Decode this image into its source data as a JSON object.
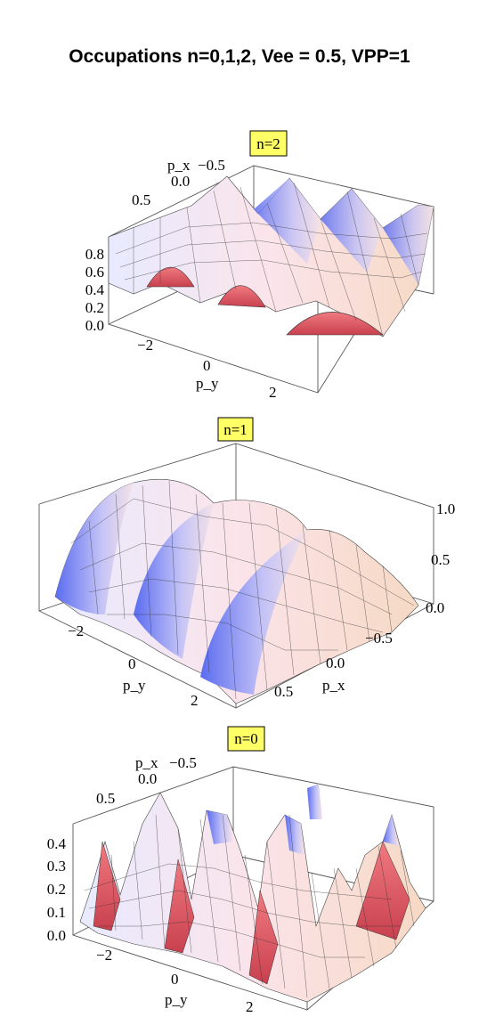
{
  "title": "Occupations n=0,1,2, Vee = 0.5, VPP=1",
  "chart_data": [
    {
      "type": "surface3d",
      "title": "n=2",
      "xlabel": "p_x",
      "ylabel": "p_y",
      "x_ticks": [
        "−0.5",
        "0.0",
        "0.5"
      ],
      "y_ticks": [
        "−2",
        "0",
        "2"
      ],
      "z_ticks": [
        "0.0",
        "0.2",
        "0.4",
        "0.6",
        "0.8"
      ],
      "zlim": [
        0,
        0.9
      ],
      "ridges": 3
    },
    {
      "type": "surface3d",
      "title": "n=1",
      "xlabel": "p_x",
      "ylabel": "p_y",
      "x_ticks": [
        "−0.5",
        "0.0",
        "0.5"
      ],
      "y_ticks": [
        "−2",
        "0",
        "2"
      ],
      "z_ticks": [
        "0.0",
        "0.5",
        "1.0"
      ],
      "zlim": [
        0,
        1.0
      ],
      "ridges": 3
    },
    {
      "type": "surface3d",
      "title": "n=0",
      "xlabel": "p_x",
      "ylabel": "p_y",
      "x_ticks": [
        "−0.5",
        "0.0",
        "0.5"
      ],
      "y_ticks": [
        "−2",
        "0",
        "2"
      ],
      "z_ticks": [
        "0.0",
        "0.1",
        "0.2",
        "0.3",
        "0.4"
      ],
      "zlim": [
        0,
        0.45
      ],
      "ridges": 3
    }
  ]
}
